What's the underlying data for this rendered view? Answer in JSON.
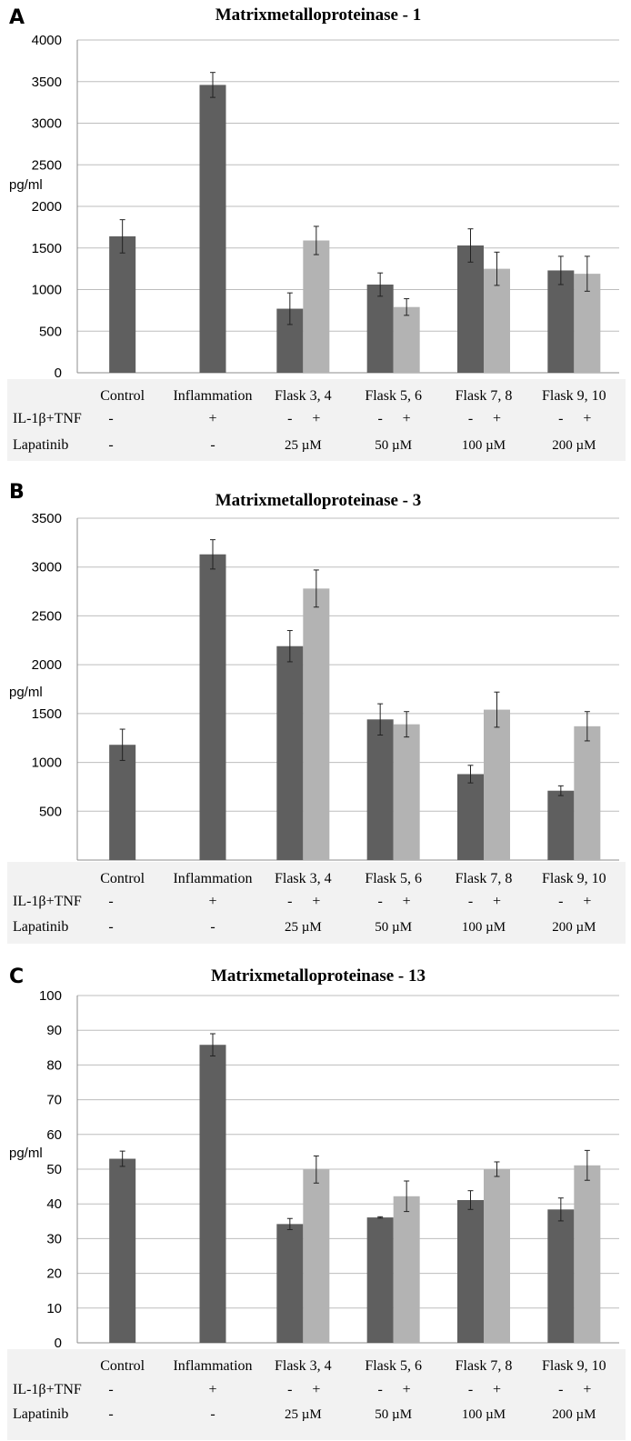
{
  "colors": {
    "dark_bar": "#5f5f5f",
    "light_bar": "#b3b3b3",
    "grid": "#bdbdbd",
    "table_bg": "#f2f2f2"
  },
  "chart_data": [
    {
      "type": "bar",
      "panel_label": "A",
      "title": "Matrixmetalloproteinase  - 1",
      "ylabel": "pg/ml",
      "xlabel": "",
      "ylim": [
        0,
        4000
      ],
      "yticks": [
        "0",
        "500",
        "1000",
        "1500",
        "2000",
        "2500",
        "3000",
        "3500",
        "4000"
      ],
      "grid": true,
      "categories": [
        "Control",
        "Inflammation",
        "Flask 3, 4",
        "Flask 5, 6",
        "Flask 7, 8",
        "Flask 9, 10"
      ],
      "series": [
        {
          "values": [
            1640,
            3460,
            770,
            1060,
            1530,
            1230
          ],
          "errors": [
            200,
            150,
            190,
            140,
            200,
            170
          ]
        },
        {
          "values": [
            null,
            null,
            1590,
            790,
            1250,
            1190
          ],
          "errors": [
            null,
            null,
            170,
            100,
            200,
            210
          ]
        }
      ],
      "rows": [
        {
          "label": "IL-1β+TNF",
          "entries": [
            [
              "-"
            ],
            [
              "+"
            ],
            [
              "-",
              "+"
            ],
            [
              "-",
              "+"
            ],
            [
              "-",
              "+"
            ],
            [
              "-",
              "+"
            ]
          ]
        },
        {
          "label": "Lapatinib",
          "entries": [
            "-",
            "-",
            "25 µM",
            "50 µM",
            "100 µM",
            "200 µM"
          ]
        }
      ]
    },
    {
      "type": "bar",
      "panel_label": "B",
      "title": "Matrixmetalloproteinase - 3",
      "ylabel": "pg/ml",
      "xlabel": "",
      "ylim": [
        0,
        3500
      ],
      "yticks": [
        "500",
        "1000",
        "1500",
        "2000",
        "2500",
        "3000",
        "3500"
      ],
      "grid": true,
      "categories": [
        "Control",
        "Inflammation",
        "Flask 3, 4",
        "Flask 5, 6",
        "Flask 7, 8",
        "Flask 9, 10"
      ],
      "series": [
        {
          "values": [
            1180,
            3130,
            2190,
            1440,
            880,
            710
          ],
          "errors": [
            160,
            150,
            160,
            160,
            90,
            50
          ]
        },
        {
          "values": [
            null,
            null,
            2780,
            1390,
            1540,
            1370
          ],
          "errors": [
            null,
            null,
            190,
            130,
            180,
            150
          ]
        }
      ],
      "rows": [
        {
          "label": "IL-1β+TNF",
          "entries": [
            [
              "-"
            ],
            [
              "+"
            ],
            [
              "-",
              "+"
            ],
            [
              "-",
              "+"
            ],
            [
              "-",
              "+"
            ],
            [
              "-",
              "+"
            ]
          ]
        },
        {
          "label": "Lapatinib",
          "entries": [
            "-",
            "-",
            "25 µM",
            "50 µM",
            "100 µM",
            "200 µM"
          ]
        }
      ]
    },
    {
      "type": "bar",
      "panel_label": "C",
      "title": "Matrixmetalloproteinase - 13",
      "ylabel": "pg/ml",
      "xlabel": "",
      "ylim": [
        0,
        100
      ],
      "yticks": [
        "0",
        "10",
        "20",
        "30",
        "40",
        "50",
        "60",
        "70",
        "80",
        "90",
        "100"
      ],
      "grid": true,
      "categories": [
        "Control",
        "Inflammation",
        "Flask 3, 4",
        "Flask 5, 6",
        "Flask 7, 8",
        "Flask 9, 10"
      ],
      "series": [
        {
          "values": [
            53,
            85.8,
            34.2,
            36.1,
            41.1,
            38.4
          ],
          "errors": [
            2.2,
            3.2,
            1.6,
            0.2,
            2.7,
            3.3
          ]
        },
        {
          "values": [
            null,
            null,
            49.9,
            42.2,
            50,
            51.1
          ],
          "errors": [
            null,
            null,
            3.9,
            4.4,
            2.1,
            4.3
          ]
        }
      ],
      "rows": [
        {
          "label": "IL-1β+TNF",
          "entries": [
            [
              "-"
            ],
            [
              "+"
            ],
            [
              "-",
              "+"
            ],
            [
              "-",
              "+"
            ],
            [
              "-",
              "+"
            ],
            [
              "-",
              "+"
            ]
          ]
        },
        {
          "label": "Lapatinib",
          "entries": [
            "-",
            "-",
            "25 µM",
            "50 µM",
            "100 µM",
            "200 µM"
          ]
        }
      ]
    }
  ]
}
